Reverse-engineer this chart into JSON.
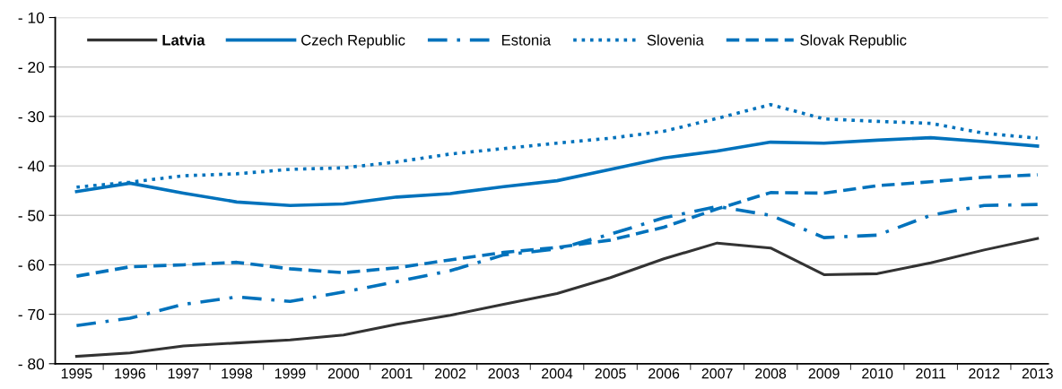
{
  "chart_data": {
    "type": "line",
    "categories": [
      "1995",
      "1996",
      "1997",
      "1998",
      "1999",
      "2000",
      "2001",
      "2002",
      "2003",
      "2004",
      "2005",
      "2006",
      "2007",
      "2008",
      "2009",
      "2010",
      "2011",
      "2012",
      "2013"
    ],
    "series": [
      {
        "name": "Latvia",
        "color": "#333333",
        "line_style": "solid",
        "values": [
          -78.5,
          -77.8,
          -76.4,
          -75.8,
          -75.2,
          -74.2,
          -72,
          -70.2,
          -68,
          -65.8,
          -62.6,
          -58.8,
          -55.6,
          -56.6,
          -62,
          -61.8,
          -59.6,
          -57,
          -54.7
        ]
      },
      {
        "name": "Czech Republic",
        "color": "#0072bc",
        "line_style": "solid",
        "values": [
          -45.2,
          -43.5,
          -45.5,
          -47.3,
          -48,
          -47.7,
          -46.3,
          -45.6,
          -44.2,
          -43,
          -40.7,
          -38.4,
          -37,
          -35.2,
          -35.4,
          -34.8,
          -34.3,
          -35.1,
          -36
        ]
      },
      {
        "name": "Estonia",
        "color": "#0072bc",
        "line_style": "dashdot",
        "values": [
          -72.3,
          -70.8,
          -68,
          -66.5,
          -67.4,
          -65.5,
          -63.4,
          -61.2,
          -58,
          -56.8,
          -53.8,
          -50.5,
          -48.2,
          -50,
          -54.5,
          -54,
          -50,
          -48,
          -47.8
        ]
      },
      {
        "name": "Slovenia",
        "color": "#0072bc",
        "line_style": "dotted",
        "values": [
          -44.3,
          -43.3,
          -42,
          -41.6,
          -40.7,
          -40.4,
          -39.2,
          -37.6,
          -36.5,
          -35.4,
          -34.4,
          -33,
          -30.4,
          -27.6,
          -30.5,
          -31,
          -31.4,
          -33.4,
          -34.4
        ]
      },
      {
        "name": "Slovak Republic",
        "color": "#0072bc",
        "line_style": "dashed",
        "values": [
          -62.3,
          -60.4,
          -60,
          -59.5,
          -60.8,
          -61.6,
          -60.6,
          -59,
          -57.5,
          -56.5,
          -55,
          -52.4,
          -48.7,
          -45.4,
          -45.5,
          -44,
          -43.2,
          -42.3,
          -41.8
        ]
      }
    ],
    "ylim": [
      -80,
      -10
    ],
    "yticks": [
      {
        "value": -80,
        "label": "- 80"
      },
      {
        "value": -70,
        "label": "- 70"
      },
      {
        "value": -60,
        "label": "- 60"
      },
      {
        "value": -50,
        "label": "- 50"
      },
      {
        "value": -40,
        "label": "- 40"
      },
      {
        "value": -30,
        "label": "- 30"
      },
      {
        "value": -20,
        "label": "- 20"
      },
      {
        "value": -10,
        "label": "- 10"
      }
    ],
    "grid": "y",
    "legend": "top left"
  }
}
